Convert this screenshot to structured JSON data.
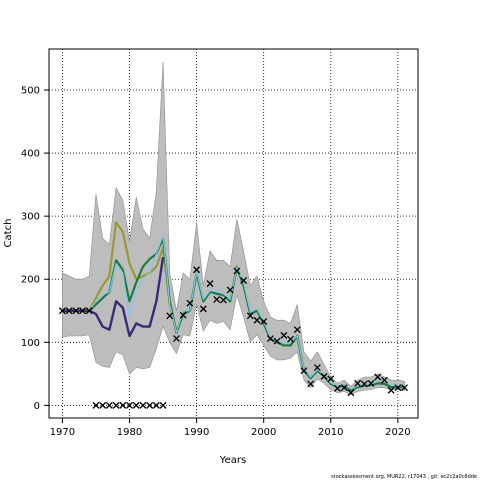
{
  "chart_data": {
    "type": "line",
    "xlabel": "Years",
    "ylabel": "Catch",
    "xlim": [
      1968,
      2023
    ],
    "ylim": [
      -20,
      565
    ],
    "xticks": [
      1970,
      1980,
      1990,
      2000,
      2010,
      2020
    ],
    "yticks": [
      0,
      100,
      200,
      300,
      400,
      500
    ],
    "grid": true,
    "footer": "stockassessment.org, MUR22, r17043 , git: ec2c2a0c6dde",
    "colors": {
      "band": "#bdbdbd",
      "band_edge": "#8c8c8c",
      "olive": "#9a9a32",
      "green": "#1b7a45",
      "navy": "#3a2a7a",
      "lightblue": "#7fc8e8",
      "observed": "#000000"
    },
    "band": {
      "x": [
        1970,
        1971,
        1972,
        1973,
        1974,
        1975,
        1976,
        1977,
        1978,
        1979,
        1980,
        1981,
        1982,
        1983,
        1984,
        1985,
        1986,
        1987,
        1988,
        1989,
        1990,
        1991,
        1992,
        1993,
        1994,
        1995,
        1996,
        1997,
        1998,
        1999,
        2000,
        2001,
        2002,
        2003,
        2004,
        2005,
        2006,
        2007,
        2008,
        2009,
        2010,
        2011,
        2012,
        2013,
        2014,
        2015,
        2016,
        2017,
        2018,
        2019,
        2020,
        2021
      ],
      "upper": [
        210,
        205,
        200,
        200,
        205,
        335,
        265,
        255,
        345,
        325,
        260,
        330,
        280,
        265,
        340,
        545,
        210,
        150,
        210,
        200,
        290,
        190,
        245,
        230,
        230,
        220,
        295,
        245,
        190,
        205,
        165,
        140,
        135,
        135,
        130,
        160,
        85,
        70,
        85,
        65,
        45,
        35,
        40,
        30,
        40,
        45,
        45,
        50,
        45,
        40,
        40,
        38
      ],
      "lower": [
        108,
        110,
        110,
        110,
        112,
        68,
        62,
        60,
        85,
        80,
        50,
        60,
        58,
        60,
        90,
        125,
        100,
        82,
        112,
        110,
        160,
        118,
        135,
        130,
        133,
        120,
        175,
        140,
        100,
        112,
        95,
        78,
        72,
        72,
        75,
        85,
        40,
        28,
        42,
        35,
        25,
        20,
        22,
        17,
        22,
        24,
        25,
        28,
        28,
        25,
        25,
        24
      ]
    },
    "series": [
      {
        "color_key": "olive",
        "x": [
          1970,
          1971,
          1972,
          1973,
          1974,
          1975,
          1976,
          1977,
          1978,
          1979,
          1980,
          1981,
          1982,
          1983,
          1984,
          1985,
          1986,
          1987,
          1988,
          1989,
          1990,
          1991,
          1992,
          1993,
          1994,
          1995,
          1996,
          1997,
          1998,
          1999,
          2000,
          2001,
          2002,
          2003,
          2004,
          2005,
          2006,
          2007,
          2008,
          2009,
          2010,
          2011,
          2012,
          2013,
          2014,
          2015,
          2016,
          2017,
          2018,
          2019,
          2020,
          2021
        ],
        "y": [
          150,
          150,
          150,
          150,
          150,
          170,
          190,
          205,
          290,
          275,
          225,
          200,
          205,
          210,
          220,
          250,
          160,
          115,
          148,
          150,
          210,
          165,
          180,
          178,
          175,
          165,
          220,
          190,
          145,
          150,
          130,
          105,
          100,
          95,
          95,
          110,
          55,
          45,
          55,
          48,
          35,
          30,
          32,
          25,
          30,
          32,
          33,
          36,
          35,
          30,
          30,
          30
        ]
      },
      {
        "color_key": "green",
        "x": [
          1970,
          1971,
          1972,
          1973,
          1974,
          1975,
          1976,
          1977,
          1978,
          1979,
          1980,
          1981,
          1982,
          1983,
          1984,
          1985,
          1986,
          1987,
          1988,
          1989,
          1990,
          1991,
          1992,
          1993,
          1994,
          1995,
          1996,
          1997,
          1998,
          1999,
          2000,
          2001,
          2002,
          2003,
          2004,
          2005,
          2006,
          2007,
          2008,
          2009,
          2010,
          2011,
          2012,
          2013,
          2014,
          2015,
          2016,
          2017,
          2018,
          2019,
          2020,
          2021
        ],
        "y": [
          150,
          150,
          150,
          150,
          150,
          160,
          170,
          180,
          230,
          215,
          165,
          195,
          220,
          232,
          240,
          265,
          165,
          115,
          145,
          150,
          210,
          165,
          180,
          177,
          175,
          165,
          218,
          190,
          145,
          150,
          130,
          105,
          100,
          95,
          95,
          110,
          55,
          43,
          55,
          46,
          34,
          29,
          31,
          24,
          29,
          31,
          32,
          35,
          34,
          29,
          29,
          29
        ]
      },
      {
        "color_key": "navy",
        "x": [
          1970,
          1971,
          1972,
          1973,
          1974,
          1975,
          1976,
          1977,
          1978,
          1979,
          1980,
          1981,
          1982,
          1983,
          1984,
          1985
        ],
        "y": [
          150,
          150,
          150,
          150,
          150,
          145,
          125,
          120,
          165,
          155,
          110,
          130,
          125,
          125,
          165,
          235
        ]
      },
      {
        "color_key": "lightblue",
        "x": [
          1974,
          1975,
          1976,
          1977,
          1978,
          1979,
          1980,
          1981,
          1982,
          1983,
          1984,
          1985,
          1986,
          1987,
          1988,
          1989,
          1990,
          1991,
          1992,
          1993,
          1994,
          1995,
          1996,
          1997,
          1998,
          1999,
          2000,
          2001,
          2002,
          2003,
          2004,
          2005,
          2006,
          2007,
          2008,
          2009,
          2010,
          2011,
          2012,
          2013,
          2014,
          2015,
          2016,
          2017,
          2018,
          2019,
          2020,
          2021
        ],
        "y": [
          150,
          165,
          175,
          180,
          225,
          210,
          140,
          185,
          200,
          210,
          240,
          270,
          160,
          115,
          150,
          150,
          212,
          168,
          182,
          180,
          177,
          168,
          218,
          195,
          148,
          153,
          133,
          108,
          103,
          98,
          100,
          110,
          57,
          45,
          57,
          48,
          36,
          30,
          33,
          26,
          31,
          33,
          34,
          38,
          38,
          32,
          31,
          31
        ]
      }
    ],
    "observed": {
      "x": [
        1970,
        1971,
        1972,
        1973,
        1974,
        1975,
        1976,
        1977,
        1978,
        1979,
        1980,
        1981,
        1982,
        1983,
        1984,
        1985,
        1986,
        1987,
        1988,
        1989,
        1990,
        1991,
        1992,
        1993,
        1994,
        1995,
        1996,
        1997,
        1998,
        1999,
        2000,
        2001,
        2002,
        2003,
        2004,
        2005,
        2006,
        2007,
        2008,
        2009,
        2010,
        2011,
        2012,
        2013,
        2014,
        2015,
        2016,
        2017,
        2018,
        2019,
        2020,
        2021
      ],
      "y": [
        150,
        150,
        150,
        150,
        150,
        0,
        0,
        0,
        0,
        0,
        0,
        0,
        0,
        0,
        0,
        0,
        142,
        106,
        143,
        162,
        215,
        153,
        193,
        168,
        167,
        183,
        213,
        198,
        142,
        135,
        133,
        106,
        102,
        111,
        105,
        120,
        55,
        34,
        60,
        46,
        42,
        27,
        28,
        20,
        35,
        34,
        35,
        45,
        40,
        24,
        28,
        28
      ]
    }
  }
}
